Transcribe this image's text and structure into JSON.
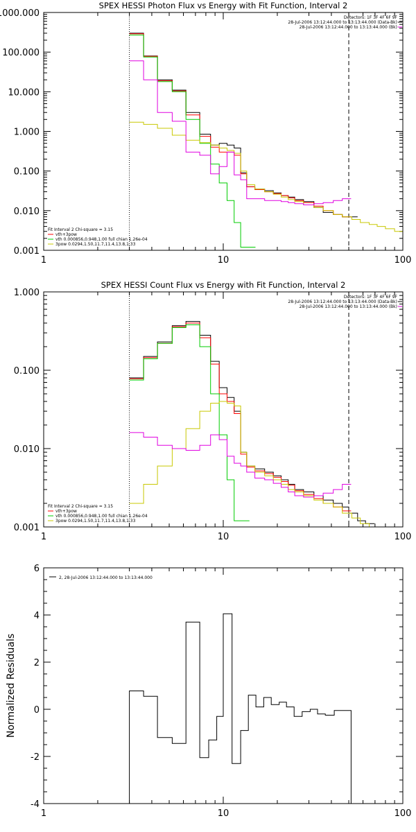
{
  "chart_data": [
    {
      "type": "line",
      "title": "SPEX HESSI Photon Flux vs Energy with Fit Function, Interval 2",
      "xlabel": "",
      "ylabel": "",
      "xscale": "log",
      "yscale": "log",
      "xlim": [
        1,
        100
      ],
      "ylim": [
        0.001,
        1000
      ],
      "xticklabels": [
        "1",
        "10",
        "100"
      ],
      "yticklabels": [
        "0.001",
        "0.010",
        "0.100",
        "1.000",
        "10.000",
        "100.000",
        "1000.000"
      ],
      "yticks": [
        0.001,
        0.01,
        0.1,
        1,
        10,
        100,
        1000
      ],
      "grid": false,
      "legend_top": [
        "Detectors: 1F 3F 4F 6F 9F",
        "28-Jul-2006 13:12:44.000 to 13:13:44.000 (Data-Bk)",
        "28-Jul-2006 13:12:44.000 to 13:13:44.000 (Bk)"
      ],
      "legend_bottom": [
        "Fit Interval  2    Chi-square = 3.15",
        "vth+3pow",
        "vth 0.000856,0.948,1.00  full chian 1.26e-04",
        "3pow 0.0294,1.50,11.7,11.4,13.8,1.33"
      ],
      "vlines": [
        3,
        50
      ],
      "series": [
        {
          "name": "28-Jul-2006 13:12:44.000 to 13:13:44.000 (Data-Bk)",
          "color": "#000000",
          "x": [
            3,
            3.6,
            4.3,
            5.2,
            6.2,
            7.4,
            8.5,
            9.5,
            10.5,
            11.5,
            12.5,
            13.5,
            15,
            17,
            19,
            21,
            23,
            25,
            28,
            32,
            36,
            41,
            46,
            50
          ],
          "values": [
            300,
            80,
            20,
            11,
            3,
            0.85,
            0.45,
            0.5,
            0.45,
            0.38,
            0.09,
            0.04,
            0.035,
            0.032,
            0.028,
            0.024,
            0.022,
            0.019,
            0.017,
            0.012,
            0.009,
            0.008,
            0.007,
            0.007
          ]
        },
        {
          "name": "vth+3pow",
          "color": "#ff0000",
          "x": [
            3,
            3.6,
            4.3,
            5.2,
            6.2,
            7.4,
            8.5,
            9.5,
            10.5,
            11.5,
            12.5,
            13.5,
            15,
            17,
            19,
            21,
            23,
            25,
            28,
            32,
            36,
            41,
            46
          ],
          "values": [
            290,
            78,
            19,
            10.5,
            2.6,
            0.75,
            0.4,
            0.3,
            0.3,
            0.25,
            0.085,
            0.04,
            0.034,
            0.03,
            0.027,
            0.024,
            0.021,
            0.018,
            0.016,
            0.013,
            0.01,
            0.008,
            0.007
          ]
        },
        {
          "name": "vth 0.000856,0.948,1.00  full chian 1.26e-04",
          "color": "#00cc00",
          "x": [
            3,
            3.6,
            4.3,
            5.2,
            6.2,
            7.4,
            8.5,
            9.5,
            10.5,
            11.5,
            12.5,
            13.5
          ],
          "values": [
            270,
            75,
            18,
            10,
            2.0,
            0.5,
            0.15,
            0.05,
            0.018,
            0.005,
            0.0012,
            0.0012
          ]
        },
        {
          "name": "3pow 0.0294,1.50,11.7,11.4,13.8,1.33",
          "color": "#c8c800",
          "x": [
            3,
            3.6,
            4.3,
            5.2,
            6.2,
            7.4,
            8.5,
            9.5,
            10.5,
            11.5,
            12.5,
            13.5,
            15,
            17,
            19,
            21,
            23,
            25,
            28,
            32,
            36,
            41,
            46,
            52,
            58,
            65,
            72,
            80,
            90
          ],
          "values": [
            1.7,
            1.5,
            1.2,
            0.8,
            0.6,
            0.52,
            0.45,
            0.38,
            0.33,
            0.28,
            0.1,
            0.045,
            0.035,
            0.03,
            0.026,
            0.022,
            0.019,
            0.017,
            0.014,
            0.012,
            0.01,
            0.008,
            0.007,
            0.006,
            0.005,
            0.0045,
            0.004,
            0.0035,
            0.003
          ]
        },
        {
          "name": "28-Jul-2006 13:12:44.000 to 13:13:44.000 (Bk)",
          "color": "#e000e0",
          "x": [
            3,
            3.6,
            4.3,
            5.2,
            6.2,
            7.4,
            8.5,
            9.5,
            10.5,
            11.5,
            12.5,
            13.5,
            15,
            17,
            19,
            21,
            23,
            25,
            28,
            32,
            36,
            41,
            46
          ],
          "values": [
            60,
            20,
            3,
            1.8,
            0.3,
            0.25,
            0.085,
            0.13,
            0.3,
            0.08,
            0.06,
            0.02,
            0.02,
            0.018,
            0.018,
            0.017,
            0.016,
            0.015,
            0.014,
            0.015,
            0.016,
            0.018,
            0.02
          ]
        }
      ]
    },
    {
      "type": "line",
      "title": "SPEX HESSI Count Flux vs Energy with Fit Function, Interval 2",
      "xlabel": "",
      "ylabel": "",
      "xscale": "log",
      "yscale": "log",
      "xlim": [
        1,
        100
      ],
      "ylim": [
        0.001,
        1
      ],
      "xticklabels": [
        "1",
        "10",
        "100"
      ],
      "yticklabels": [
        "0.001",
        "0.010",
        "0.100",
        "1.000"
      ],
      "yticks": [
        0.001,
        0.01,
        0.1,
        1
      ],
      "grid": false,
      "legend_top": [
        "Detectors: 1F 3F 4F 6F 9F",
        "28-Jul-2006 13:12:44.000 to 13:13:44.000 (Data-Bk)",
        "28-Jul-2006 13:12:44.000 to 13:13:44.000 (Bk)"
      ],
      "legend_bottom": [
        "Fit Interval  2    Chi-square = 3.15",
        "vth+3pow",
        "vth 0.000856,0.948,1.00  full chian 1.26e-04",
        "3pow 0.0294,1.50,11.7,11.4,13.8,1.33"
      ],
      "vlines": [
        3,
        50
      ],
      "series": [
        {
          "name": "28-Jul-2006 13:12:44.000 to 13:13:44.000 (Data-Bk)",
          "color": "#000000",
          "x": [
            3,
            3.6,
            4.3,
            5.2,
            6.2,
            7.4,
            8.5,
            9.5,
            10.5,
            11.5,
            12.5,
            13.5,
            15,
            17,
            19,
            21,
            23,
            25,
            28,
            32,
            36,
            41,
            46,
            50,
            56,
            62
          ],
          "values": [
            0.08,
            0.15,
            0.23,
            0.37,
            0.42,
            0.28,
            0.13,
            0.06,
            0.045,
            0.03,
            0.009,
            0.006,
            0.0055,
            0.005,
            0.0045,
            0.004,
            0.0035,
            0.003,
            0.0028,
            0.0025,
            0.0022,
            0.002,
            0.0018,
            0.0015,
            0.0012,
            0.0011
          ]
        },
        {
          "name": "vth+3pow",
          "color": "#ff0000",
          "x": [
            3,
            3.6,
            4.3,
            5.2,
            6.2,
            7.4,
            8.5,
            9.5,
            10.5,
            11.5,
            12.5,
            13.5,
            15,
            17,
            19,
            21,
            23,
            25,
            28,
            32,
            36,
            41,
            46
          ],
          "values": [
            0.078,
            0.145,
            0.22,
            0.36,
            0.4,
            0.26,
            0.12,
            0.05,
            0.04,
            0.028,
            0.0085,
            0.0058,
            0.0052,
            0.0048,
            0.0043,
            0.0038,
            0.0034,
            0.0029,
            0.0026,
            0.0023,
            0.002,
            0.0018,
            0.0016
          ]
        },
        {
          "name": "vth 0.000856,0.948,1.00  full chian 1.26e-04",
          "color": "#00cc00",
          "x": [
            3,
            3.6,
            4.3,
            5.2,
            6.2,
            7.4,
            8.5,
            9.5,
            10.5,
            11.5,
            12.5
          ],
          "values": [
            0.075,
            0.14,
            0.22,
            0.35,
            0.38,
            0.2,
            0.05,
            0.015,
            0.004,
            0.0012,
            0.0012
          ]
        },
        {
          "name": "3pow 0.0294,1.50,11.7,11.4,13.8,1.33",
          "color": "#c8c800",
          "x": [
            3,
            3.6,
            4.3,
            5.2,
            6.2,
            7.4,
            8.5,
            9.5,
            10.5,
            11.5,
            12.5,
            13.5,
            15,
            17,
            19,
            21,
            23,
            25,
            28,
            32,
            36,
            41,
            46,
            52,
            58,
            65
          ],
          "values": [
            0.002,
            0.0035,
            0.006,
            0.01,
            0.018,
            0.03,
            0.038,
            0.04,
            0.038,
            0.035,
            0.009,
            0.006,
            0.005,
            0.0045,
            0.004,
            0.0035,
            0.003,
            0.0028,
            0.0025,
            0.0022,
            0.002,
            0.0018,
            0.0015,
            0.0013,
            0.0011,
            0.001
          ]
        },
        {
          "name": "28-Jul-2006 13:12:44.000 to 13:13:44.000 (Bk)",
          "color": "#e000e0",
          "x": [
            3,
            3.6,
            4.3,
            5.2,
            6.2,
            7.4,
            8.5,
            9.5,
            10.5,
            11.5,
            12.5,
            13.5,
            15,
            17,
            19,
            21,
            23,
            25,
            28,
            32,
            36,
            41,
            46
          ],
          "values": [
            0.016,
            0.014,
            0.011,
            0.01,
            0.0095,
            0.011,
            0.015,
            0.013,
            0.008,
            0.0065,
            0.006,
            0.005,
            0.0042,
            0.004,
            0.0036,
            0.0032,
            0.0028,
            0.0025,
            0.0024,
            0.0025,
            0.0027,
            0.003,
            0.0035
          ]
        }
      ]
    },
    {
      "type": "line",
      "title": "",
      "xlabel": "",
      "ylabel": "Normalized Residuals",
      "xscale": "log",
      "yscale": "linear",
      "xlim": [
        1,
        100
      ],
      "ylim": [
        -4,
        6
      ],
      "xticklabels": [
        "1",
        "10",
        "100"
      ],
      "yticklabels": [
        "-4",
        "-2",
        "0",
        "2",
        "4",
        "6"
      ],
      "yticks": [
        -4,
        -2,
        0,
        2,
        4,
        6
      ],
      "grid": false,
      "legend_top": [
        "2, 28-Jul-2006 13:12:44.000 to 13:13:44.000"
      ],
      "legend_bottom": [],
      "vlines": [],
      "series": [
        {
          "name": "2, 28-Jul-2006 13:12:44.000 to 13:13:44.000",
          "color": "#000000",
          "x": [
            3,
            3.6,
            4.3,
            5.2,
            6.2,
            7.4,
            8.3,
            9.2,
            10,
            11.2,
            12.5,
            13.8,
            15.2,
            16.8,
            18.5,
            20.5,
            22.5,
            24.8,
            27.5,
            30.5,
            33.5,
            37,
            41.5,
            46
          ],
          "values": [
            0.78,
            0.55,
            -1.2,
            -1.45,
            3.7,
            -2.05,
            -1.3,
            -0.3,
            4.05,
            -2.3,
            -0.9,
            0.6,
            0.1,
            0.5,
            0.2,
            0.3,
            0.1,
            -0.3,
            -0.1,
            0.0,
            -0.2,
            -0.25,
            -0.05,
            -0.05
          ]
        }
      ]
    }
  ]
}
